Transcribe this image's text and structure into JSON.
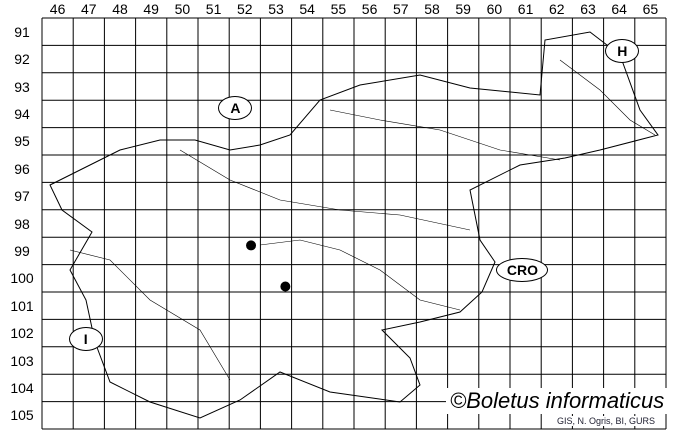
{
  "map": {
    "columns": [
      "46",
      "47",
      "48",
      "49",
      "50",
      "51",
      "52",
      "53",
      "54",
      "55",
      "56",
      "57",
      "58",
      "59",
      "60",
      "61",
      "62",
      "63",
      "64",
      "65"
    ],
    "rows": [
      "91",
      "92",
      "93",
      "94",
      "95",
      "96",
      "97",
      "98",
      "99",
      "100",
      "101",
      "102",
      "103",
      "104",
      "105"
    ],
    "country_labels": [
      {
        "id": "A",
        "text": "A",
        "col": 52.2,
        "row": 94.3
      },
      {
        "id": "H",
        "text": "H",
        "col": 64.6,
        "row": 92.2
      },
      {
        "id": "CRO",
        "text": "CRO",
        "col": 61.4,
        "row": 100.2
      },
      {
        "id": "I",
        "text": "I",
        "col": 47.4,
        "row": 102.7
      }
    ],
    "records": [
      {
        "quadrant": "52/99",
        "col": 52.7,
        "row": 99.3
      },
      {
        "quadrant": "53/100",
        "col": 53.8,
        "row": 100.8
      }
    ],
    "copyright": "©Boletus informaticus",
    "source": "GIS, N. Ogris, BI, GURS",
    "colors": {
      "grid": "#000000",
      "border": "#000000",
      "record": "#000000"
    }
  }
}
